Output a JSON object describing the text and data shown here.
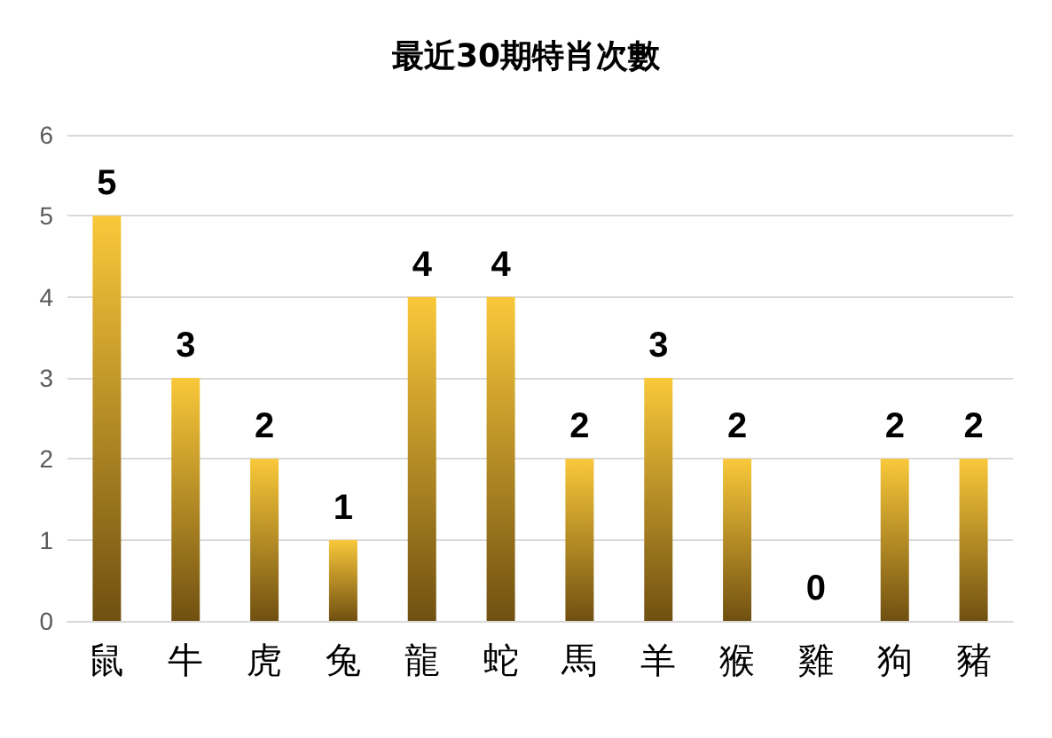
{
  "chart_data": {
    "type": "bar",
    "title": "最近30期特肖次數",
    "categories": [
      "鼠",
      "牛",
      "虎",
      "兔",
      "龍",
      "蛇",
      "馬",
      "羊",
      "猴",
      "雞",
      "狗",
      "豬"
    ],
    "values": [
      5,
      3,
      2,
      1,
      4,
      4,
      2,
      3,
      2,
      0,
      2,
      2
    ],
    "color": "#f9c83a",
    "ylim": [
      0,
      6
    ],
    "yticks": [
      0,
      1,
      2,
      3,
      4,
      5,
      6
    ],
    "grid": "y",
    "data_labels": true
  }
}
